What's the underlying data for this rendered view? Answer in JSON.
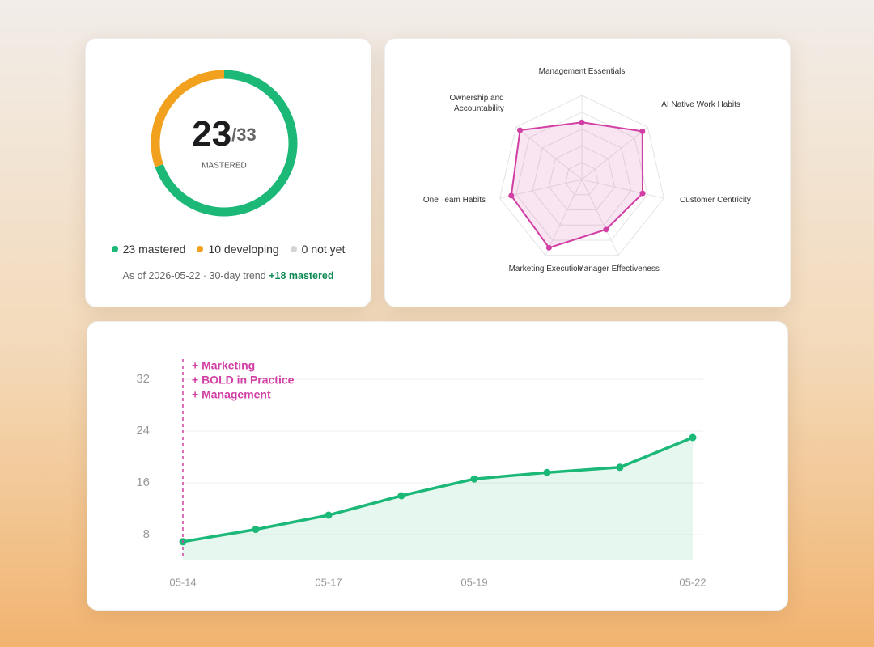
{
  "chart_data": [
    {
      "type": "donut",
      "center_total": "/33",
      "center_label": "MASTERED",
      "categories": [
        "mastered",
        "developing",
        "not yet"
      ],
      "values": [
        23,
        10,
        0
      ],
      "colors": [
        "#1cb877",
        "#f2a11f",
        "#d4d4d4"
      ],
      "legend_labels": [
        "23 mastered",
        "10 developing",
        "0 not yet"
      ],
      "note": "As of 2026-05-22 · 30-day trend",
      "trend": "+18 mastered"
    },
    {
      "type": "radar",
      "axes": [
        "Management Essentials",
        "AI Native Work Habits",
        "Customer Centricity",
        "Manager Effectiveness",
        "Marketing Execution",
        "One Team Habits",
        "Ownership and Accountability"
      ],
      "values": [
        3.4,
        4.6,
        3.7,
        3.3,
        4.5,
        4.3,
        4.7
      ],
      "rlim": [
        0,
        5
      ],
      "rticks": [
        1,
        2,
        3,
        4,
        5
      ],
      "color": "#d23fa4"
    },
    {
      "type": "line",
      "categories": [
        "05-14",
        null,
        "05-17",
        null,
        "05-19",
        null,
        null,
        "05-22"
      ],
      "values": [
        6.9,
        8.8,
        11,
        14,
        16.6,
        17.6,
        18.4,
        23
      ],
      "color": "#1cb877",
      "ylim": [
        4,
        36
      ],
      "yticks": [
        8,
        16,
        24,
        32
      ],
      "grid": true,
      "annotation": {
        "x": "05-14",
        "lines": [
          "+ Marketing",
          "+ BOLD in Practice",
          "+ Management"
        ],
        "color": "#d23fa4"
      }
    }
  ]
}
